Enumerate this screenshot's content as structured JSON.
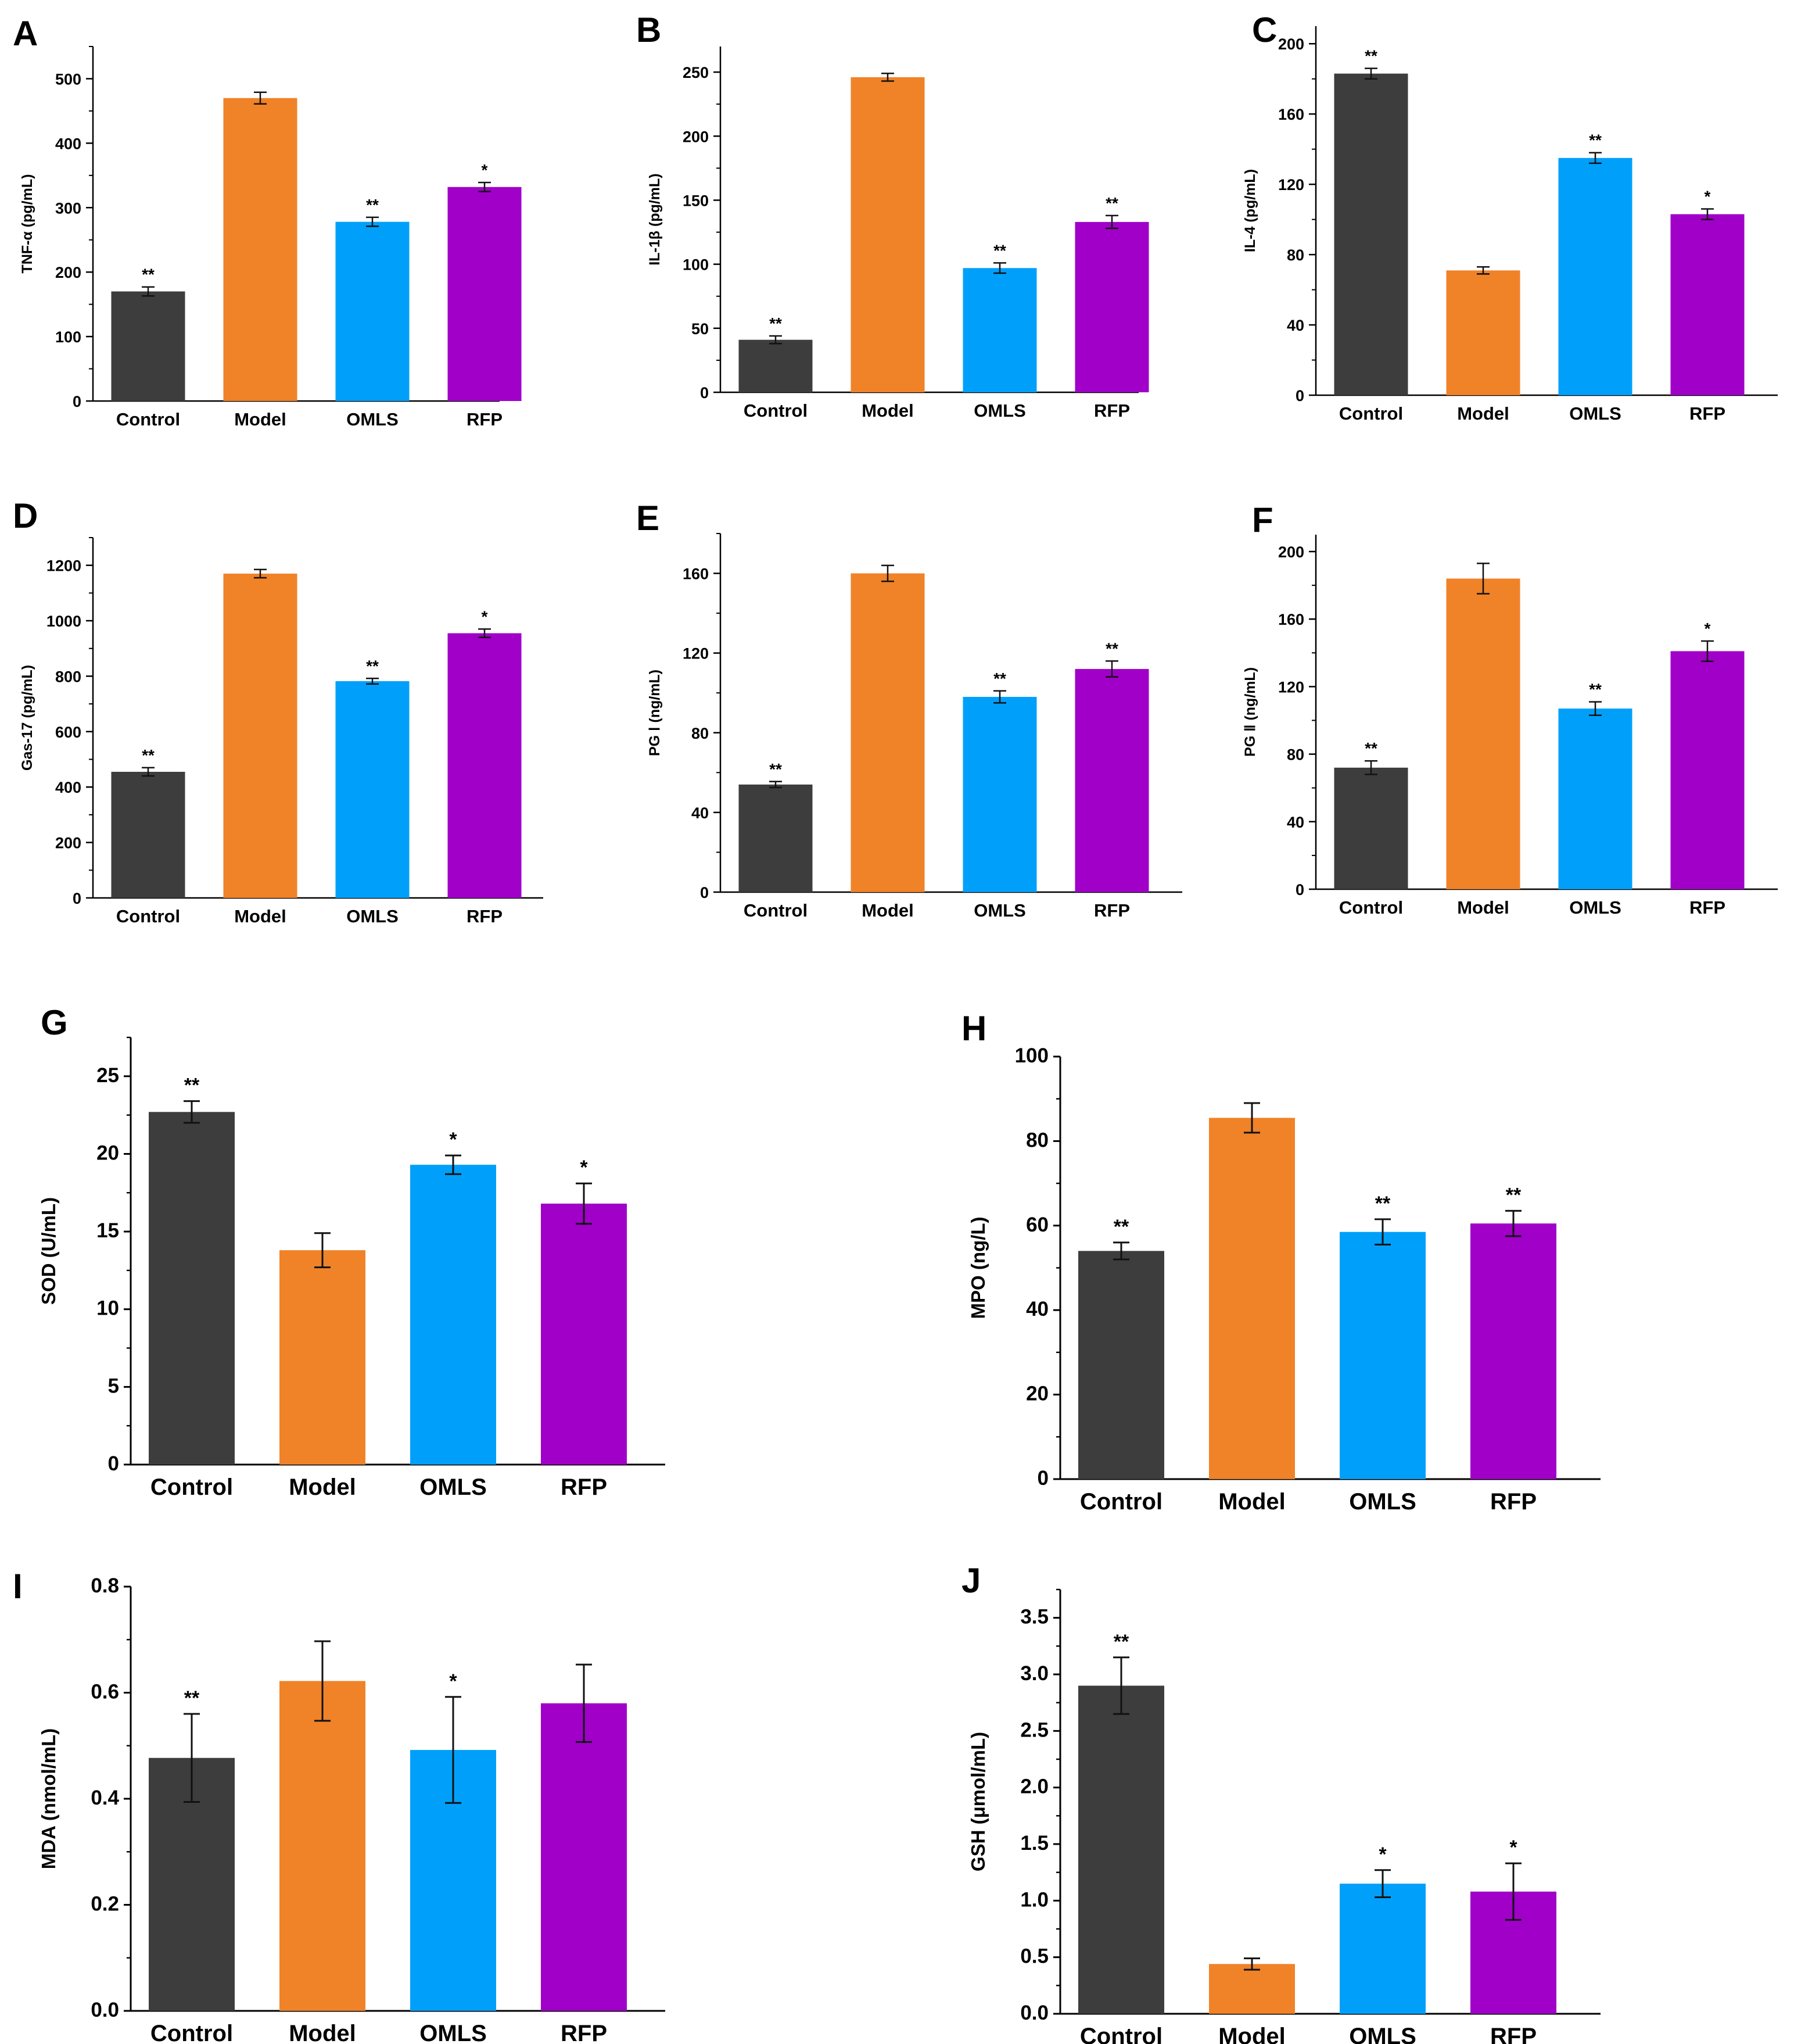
{
  "colors": {
    "Control": "#3d3d3d",
    "Model": "#f08228",
    "OMLS": "#00a0fa",
    "RFP": "#a000c8"
  },
  "chart_data": [
    {
      "panel": "A",
      "type": "bar",
      "categories": [
        "Control",
        "Model",
        "OMLS",
        "RFP"
      ],
      "values": [
        170,
        470,
        278,
        332
      ],
      "errors": [
        7,
        9,
        7,
        7
      ],
      "significance": [
        "**",
        "",
        "**",
        "*"
      ],
      "ylabel": "TNF-α (pg/mL)",
      "ylim": [
        0,
        550
      ],
      "yticks": [
        "0",
        "100",
        "200",
        "300",
        "400",
        "500"
      ]
    },
    {
      "panel": "B",
      "type": "bar",
      "categories": [
        "Control",
        "Model",
        "OMLS",
        "RFP"
      ],
      "values": [
        41,
        246,
        97,
        133
      ],
      "errors": [
        3,
        3,
        4,
        5
      ],
      "significance": [
        "**",
        "",
        "**",
        "**"
      ],
      "ylabel": "IL-1β (pg/mL)",
      "ylim": [
        0,
        270
      ],
      "yticks": [
        "0",
        "50",
        "100",
        "150",
        "200",
        "250"
      ]
    },
    {
      "panel": "C",
      "type": "bar",
      "categories": [
        "Control",
        "Model",
        "OMLS",
        "RFP"
      ],
      "values": [
        183,
        71,
        135,
        103
      ],
      "errors": [
        3,
        2,
        3,
        3
      ],
      "significance": [
        "**",
        "",
        "**",
        "*"
      ],
      "ylabel": "IL-4 (pg/mL)",
      "ylim": [
        0,
        210
      ],
      "yticks": [
        "0",
        "40",
        "80",
        "120",
        "160",
        "200"
      ]
    },
    {
      "panel": "D",
      "type": "bar",
      "categories": [
        "Control",
        "Model",
        "OMLS",
        "RFP"
      ],
      "values": [
        455,
        1170,
        782,
        955
      ],
      "errors": [
        15,
        15,
        10,
        15
      ],
      "significance": [
        "**",
        "",
        "**",
        "*"
      ],
      "ylabel": "Gas-17 (pg/mL)",
      "ylim": [
        0,
        1300
      ],
      "yticks": [
        "0",
        "200",
        "400",
        "600",
        "800",
        "1000",
        "1200"
      ]
    },
    {
      "panel": "E",
      "type": "bar",
      "categories": [
        "Control",
        "Model",
        "OMLS",
        "RFP"
      ],
      "values": [
        54,
        160,
        98,
        112
      ],
      "errors": [
        1.5,
        4,
        3,
        4
      ],
      "significance": [
        "**",
        "",
        "**",
        "**"
      ],
      "ylabel": "PG Ⅰ (ng/mL)",
      "ylim": [
        0,
        180
      ],
      "yticks": [
        "0",
        "40",
        "80",
        "120",
        "160"
      ]
    },
    {
      "panel": "F",
      "type": "bar",
      "categories": [
        "Control",
        "Model",
        "OMLS",
        "RFP"
      ],
      "values": [
        72,
        184,
        107,
        141
      ],
      "errors": [
        4,
        9,
        4,
        6
      ],
      "significance": [
        "**",
        "",
        "**",
        "*"
      ],
      "ylabel": "PG Ⅱ (ng/mL)",
      "ylim": [
        0,
        210
      ],
      "yticks": [
        "0",
        "40",
        "80",
        "120",
        "160",
        "200"
      ]
    },
    {
      "panel": "G",
      "type": "bar",
      "categories": [
        "Control",
        "Model",
        "OMLS",
        "RFP"
      ],
      "values": [
        22.7,
        13.8,
        19.3,
        16.8
      ],
      "errors": [
        0.7,
        1.1,
        0.6,
        1.3
      ],
      "significance": [
        "**",
        "",
        "*",
        "*"
      ],
      "ylabel": "SOD (U/mL)",
      "ylim": [
        0,
        27.5
      ],
      "yticks": [
        "0",
        "5",
        "10",
        "15",
        "20",
        "25"
      ]
    },
    {
      "panel": "H",
      "type": "bar",
      "categories": [
        "Control",
        "Model",
        "OMLS",
        "RFP"
      ],
      "values": [
        54,
        85.5,
        58.5,
        60.5
      ],
      "errors": [
        2,
        3.5,
        3,
        3
      ],
      "significance": [
        "**",
        "",
        "**",
        "**"
      ],
      "ylabel": "MPO (ng/L)",
      "ylim": [
        0,
        100
      ],
      "yticks": [
        "0",
        "20",
        "40",
        "60",
        "80",
        "100"
      ]
    },
    {
      "panel": "I",
      "type": "bar",
      "categories": [
        "Control",
        "Model",
        "OMLS",
        "RFP"
      ],
      "values": [
        0.477,
        0.622,
        0.492,
        0.58
      ],
      "errors": [
        0.083,
        0.075,
        0.1,
        0.073
      ],
      "significance": [
        "**",
        "",
        "*",
        ""
      ],
      "ylabel": "MDA (nmol/mL)",
      "ylim": [
        0,
        0.8
      ],
      "yticks": [
        "0.0",
        "0.2",
        "0.4",
        "0.6",
        "0.8"
      ]
    },
    {
      "panel": "J",
      "type": "bar",
      "categories": [
        "Control",
        "Model",
        "OMLS",
        "RFP"
      ],
      "values": [
        2.9,
        0.44,
        1.15,
        1.08
      ],
      "errors": [
        0.25,
        0.05,
        0.12,
        0.25
      ],
      "significance": [
        "**",
        "",
        "*",
        "*"
      ],
      "ylabel": "GSH (μmol/mL)",
      "ylim": [
        0,
        3.75
      ],
      "yticks": [
        "0.0",
        "0.5",
        "1.0",
        "1.5",
        "2.0",
        "2.5",
        "3.0",
        "3.5"
      ]
    }
  ]
}
